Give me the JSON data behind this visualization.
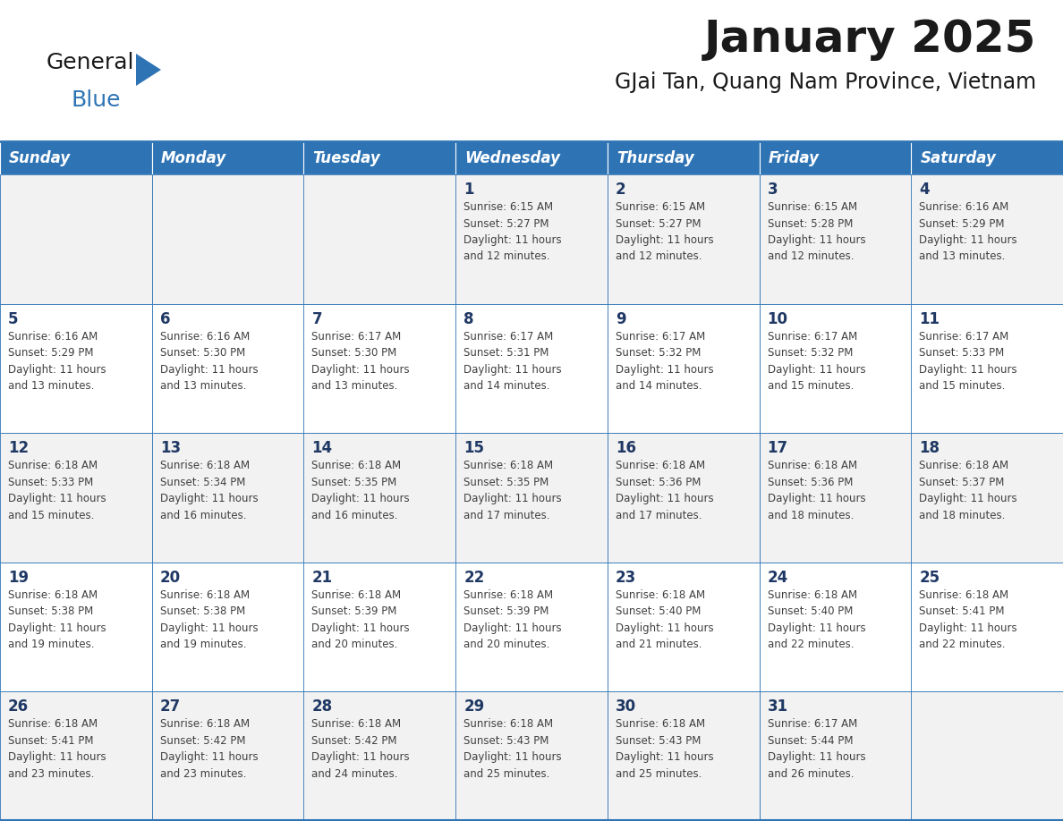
{
  "title": "January 2025",
  "subtitle": "GJai Tan, Quang Nam Province, Vietnam",
  "days_of_week": [
    "Sunday",
    "Monday",
    "Tuesday",
    "Wednesday",
    "Thursday",
    "Friday",
    "Saturday"
  ],
  "header_bg": "#2E74B5",
  "header_text": "#FFFFFF",
  "cell_bg_even": "#F2F2F2",
  "cell_bg_odd": "#FFFFFF",
  "day_text_color": "#1F3864",
  "info_text_color": "#404040",
  "border_color": "#2E74B5",
  "separator_color": "#2E74B5",
  "title_color": "#1A1A1A",
  "subtitle_color": "#1A1A1A",
  "logo_black": "#1A1A1A",
  "logo_blue": "#2E74B5",
  "calendar_data": [
    [
      {
        "day": "",
        "info": ""
      },
      {
        "day": "",
        "info": ""
      },
      {
        "day": "",
        "info": ""
      },
      {
        "day": "1",
        "info": "Sunrise: 6:15 AM\nSunset: 5:27 PM\nDaylight: 11 hours\nand 12 minutes."
      },
      {
        "day": "2",
        "info": "Sunrise: 6:15 AM\nSunset: 5:27 PM\nDaylight: 11 hours\nand 12 minutes."
      },
      {
        "day": "3",
        "info": "Sunrise: 6:15 AM\nSunset: 5:28 PM\nDaylight: 11 hours\nand 12 minutes."
      },
      {
        "day": "4",
        "info": "Sunrise: 6:16 AM\nSunset: 5:29 PM\nDaylight: 11 hours\nand 13 minutes."
      }
    ],
    [
      {
        "day": "5",
        "info": "Sunrise: 6:16 AM\nSunset: 5:29 PM\nDaylight: 11 hours\nand 13 minutes."
      },
      {
        "day": "6",
        "info": "Sunrise: 6:16 AM\nSunset: 5:30 PM\nDaylight: 11 hours\nand 13 minutes."
      },
      {
        "day": "7",
        "info": "Sunrise: 6:17 AM\nSunset: 5:30 PM\nDaylight: 11 hours\nand 13 minutes."
      },
      {
        "day": "8",
        "info": "Sunrise: 6:17 AM\nSunset: 5:31 PM\nDaylight: 11 hours\nand 14 minutes."
      },
      {
        "day": "9",
        "info": "Sunrise: 6:17 AM\nSunset: 5:32 PM\nDaylight: 11 hours\nand 14 minutes."
      },
      {
        "day": "10",
        "info": "Sunrise: 6:17 AM\nSunset: 5:32 PM\nDaylight: 11 hours\nand 15 minutes."
      },
      {
        "day": "11",
        "info": "Sunrise: 6:17 AM\nSunset: 5:33 PM\nDaylight: 11 hours\nand 15 minutes."
      }
    ],
    [
      {
        "day": "12",
        "info": "Sunrise: 6:18 AM\nSunset: 5:33 PM\nDaylight: 11 hours\nand 15 minutes."
      },
      {
        "day": "13",
        "info": "Sunrise: 6:18 AM\nSunset: 5:34 PM\nDaylight: 11 hours\nand 16 minutes."
      },
      {
        "day": "14",
        "info": "Sunrise: 6:18 AM\nSunset: 5:35 PM\nDaylight: 11 hours\nand 16 minutes."
      },
      {
        "day": "15",
        "info": "Sunrise: 6:18 AM\nSunset: 5:35 PM\nDaylight: 11 hours\nand 17 minutes."
      },
      {
        "day": "16",
        "info": "Sunrise: 6:18 AM\nSunset: 5:36 PM\nDaylight: 11 hours\nand 17 minutes."
      },
      {
        "day": "17",
        "info": "Sunrise: 6:18 AM\nSunset: 5:36 PM\nDaylight: 11 hours\nand 18 minutes."
      },
      {
        "day": "18",
        "info": "Sunrise: 6:18 AM\nSunset: 5:37 PM\nDaylight: 11 hours\nand 18 minutes."
      }
    ],
    [
      {
        "day": "19",
        "info": "Sunrise: 6:18 AM\nSunset: 5:38 PM\nDaylight: 11 hours\nand 19 minutes."
      },
      {
        "day": "20",
        "info": "Sunrise: 6:18 AM\nSunset: 5:38 PM\nDaylight: 11 hours\nand 19 minutes."
      },
      {
        "day": "21",
        "info": "Sunrise: 6:18 AM\nSunset: 5:39 PM\nDaylight: 11 hours\nand 20 minutes."
      },
      {
        "day": "22",
        "info": "Sunrise: 6:18 AM\nSunset: 5:39 PM\nDaylight: 11 hours\nand 20 minutes."
      },
      {
        "day": "23",
        "info": "Sunrise: 6:18 AM\nSunset: 5:40 PM\nDaylight: 11 hours\nand 21 minutes."
      },
      {
        "day": "24",
        "info": "Sunrise: 6:18 AM\nSunset: 5:40 PM\nDaylight: 11 hours\nand 22 minutes."
      },
      {
        "day": "25",
        "info": "Sunrise: 6:18 AM\nSunset: 5:41 PM\nDaylight: 11 hours\nand 22 minutes."
      }
    ],
    [
      {
        "day": "26",
        "info": "Sunrise: 6:18 AM\nSunset: 5:41 PM\nDaylight: 11 hours\nand 23 minutes."
      },
      {
        "day": "27",
        "info": "Sunrise: 6:18 AM\nSunset: 5:42 PM\nDaylight: 11 hours\nand 23 minutes."
      },
      {
        "day": "28",
        "info": "Sunrise: 6:18 AM\nSunset: 5:42 PM\nDaylight: 11 hours\nand 24 minutes."
      },
      {
        "day": "29",
        "info": "Sunrise: 6:18 AM\nSunset: 5:43 PM\nDaylight: 11 hours\nand 25 minutes."
      },
      {
        "day": "30",
        "info": "Sunrise: 6:18 AM\nSunset: 5:43 PM\nDaylight: 11 hours\nand 25 minutes."
      },
      {
        "day": "31",
        "info": "Sunrise: 6:17 AM\nSunset: 5:44 PM\nDaylight: 11 hours\nand 26 minutes."
      },
      {
        "day": "",
        "info": ""
      }
    ]
  ]
}
